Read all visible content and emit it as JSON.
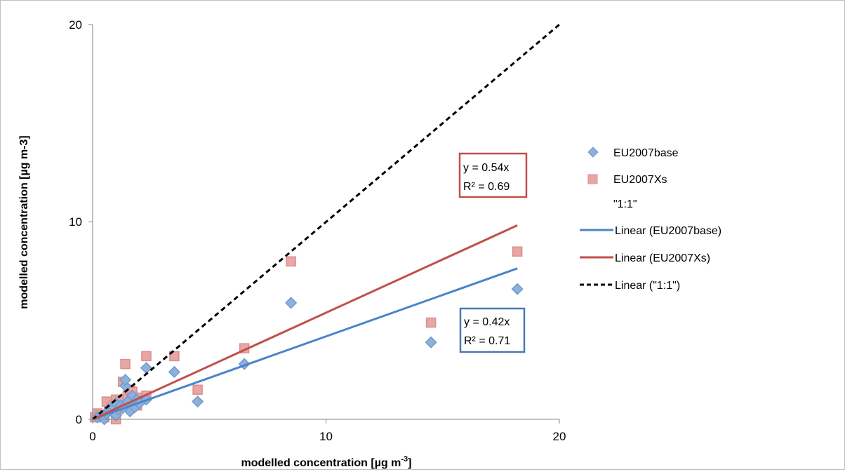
{
  "chart_data": {
    "type": "scatter",
    "title": "",
    "xlabel": "modelled concentration [µg m-3]",
    "xlabel_main": "modelled concentration [µg m",
    "xlabel_sup": "-3",
    "xlabel_end": "]",
    "ylabel": "modelled concentration [µg m-3]",
    "xlim": [
      0,
      20
    ],
    "ylim": [
      0,
      20
    ],
    "xticks": [
      "0",
      "10",
      "20"
    ],
    "yticks": [
      "0",
      "10",
      "20"
    ],
    "grid": false,
    "legend_position": "right",
    "colors": {
      "base_fill": "#8fb0dc",
      "base_stroke": "#4a78b5",
      "base_line": "#4a86c8",
      "xs_fill": "#e8a6a4",
      "xs_stroke": "#c0504d",
      "xs_line": "#c0504d",
      "one_to_one": "#000000"
    },
    "series": [
      {
        "name": "EU2007base",
        "marker": "diamond",
        "points": [
          [
            0.2,
            0.1
          ],
          [
            0.4,
            0.2
          ],
          [
            0.5,
            0.0
          ],
          [
            0.6,
            0.3
          ],
          [
            0.7,
            0.5
          ],
          [
            0.8,
            0.4
          ],
          [
            0.9,
            0.6
          ],
          [
            1.0,
            0.2
          ],
          [
            1.0,
            0.8
          ],
          [
            1.1,
            0.5
          ],
          [
            1.2,
            0.7
          ],
          [
            1.3,
            0.6
          ],
          [
            1.4,
            1.7
          ],
          [
            1.4,
            2.0
          ],
          [
            1.5,
            0.9
          ],
          [
            1.6,
            0.4
          ],
          [
            1.7,
            1.2
          ],
          [
            1.8,
            0.6
          ],
          [
            1.9,
            1.0
          ],
          [
            2.0,
            0.8
          ],
          [
            2.3,
            1.0
          ],
          [
            2.3,
            2.6
          ],
          [
            3.5,
            2.4
          ],
          [
            4.5,
            0.9
          ],
          [
            6.5,
            2.8
          ],
          [
            8.5,
            5.9
          ],
          [
            14.5,
            3.9
          ],
          [
            18.2,
            6.6
          ]
        ]
      },
      {
        "name": "EU2007Xs",
        "marker": "square",
        "points": [
          [
            0.1,
            0.1
          ],
          [
            0.2,
            0.3
          ],
          [
            0.3,
            0.2
          ],
          [
            0.5,
            0.1
          ],
          [
            0.6,
            0.9
          ],
          [
            0.7,
            0.4
          ],
          [
            0.8,
            0.6
          ],
          [
            0.9,
            0.7
          ],
          [
            1.0,
            1.0
          ],
          [
            1.0,
            0.0
          ],
          [
            1.1,
            0.5
          ],
          [
            1.2,
            0.9
          ],
          [
            1.3,
            1.9
          ],
          [
            1.4,
            2.8
          ],
          [
            1.5,
            1.2
          ],
          [
            1.6,
            1.5
          ],
          [
            1.7,
            1.4
          ],
          [
            1.8,
            1.0
          ],
          [
            1.9,
            0.7
          ],
          [
            2.0,
            1.1
          ],
          [
            2.3,
            3.2
          ],
          [
            2.3,
            1.2
          ],
          [
            3.5,
            3.2
          ],
          [
            4.5,
            1.5
          ],
          [
            6.5,
            3.6
          ],
          [
            8.5,
            8.0
          ],
          [
            14.5,
            4.9
          ],
          [
            18.2,
            8.5
          ]
        ]
      },
      {
        "name": "\"1:1\"",
        "marker": "none",
        "points": []
      }
    ],
    "trendlines": [
      {
        "name": "Linear (EU2007base)",
        "slope": 0.42,
        "x_range": [
          0,
          18.2
        ],
        "style": "solid",
        "color_key": "base_line"
      },
      {
        "name": "Linear (EU2007Xs)",
        "slope": 0.54,
        "x_range": [
          0,
          18.2
        ],
        "style": "solid",
        "color_key": "xs_line"
      },
      {
        "name": "Linear (\"1:1\")",
        "slope": 1.0,
        "x_range": [
          0,
          20
        ],
        "style": "dashed",
        "color_key": "one_to_one"
      }
    ],
    "annotations": [
      {
        "id": "xs_eq",
        "line1": "y = 0.54x",
        "line2": "R² = 0.69",
        "color_key": "xs_line"
      },
      {
        "id": "base_eq",
        "line1": "y = 0.42x",
        "line2": "R² = 0.71",
        "color_key": "base_line"
      }
    ],
    "legend": [
      {
        "label": "EU2007base",
        "kind": "diamond",
        "color_key": "base_fill"
      },
      {
        "label": "EU2007Xs",
        "kind": "square",
        "color_key": "xs_fill"
      },
      {
        "label": "\"1:1\"",
        "kind": "none",
        "color_key": "one_to_one"
      },
      {
        "label": "Linear (EU2007base)",
        "kind": "line",
        "color_key": "base_line"
      },
      {
        "label": "Linear (EU2007Xs)",
        "kind": "line",
        "color_key": "xs_line"
      },
      {
        "label": "Linear (\"1:1\")",
        "kind": "dashed",
        "color_key": "one_to_one"
      }
    ]
  }
}
